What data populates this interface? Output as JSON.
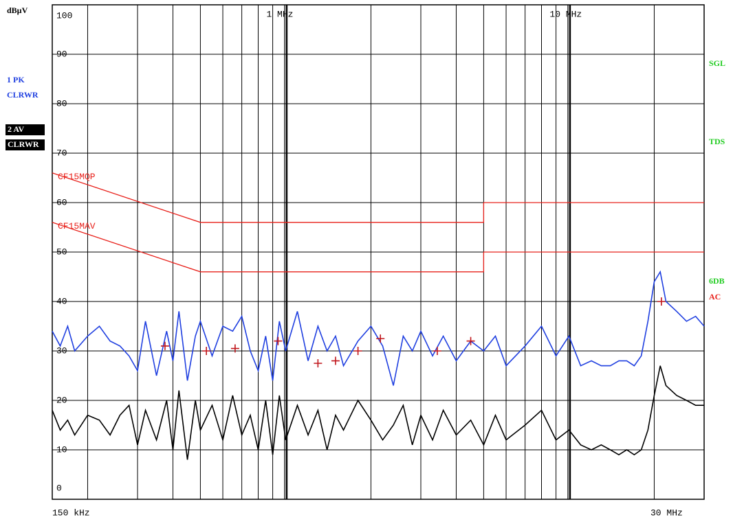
{
  "chart_data": {
    "type": "line",
    "y_label": "dBµV",
    "xscale": "log",
    "xlim": [
      0.15,
      30
    ],
    "ylim": [
      0,
      100
    ],
    "xticks": [
      {
        "value": 0.15,
        "label": "150 kHz"
      },
      {
        "value": 1,
        "label": "1 MHz"
      },
      {
        "value": 10,
        "label": "10 MHz"
      },
      {
        "value": 30,
        "label": "30 MHz"
      }
    ],
    "xgrid": [
      0.2,
      0.3,
      0.4,
      0.5,
      0.6,
      0.7,
      0.8,
      0.9,
      2,
      3,
      4,
      5,
      6,
      7,
      8,
      9,
      20
    ],
    "yticks": [
      0,
      10,
      20,
      30,
      40,
      50,
      60,
      70,
      80,
      90,
      100
    ],
    "grid": true,
    "x": [
      0.15,
      0.16,
      0.17,
      0.18,
      0.2,
      0.22,
      0.24,
      0.26,
      0.28,
      0.3,
      0.32,
      0.35,
      0.38,
      0.4,
      0.42,
      0.45,
      0.48,
      0.5,
      0.55,
      0.6,
      0.65,
      0.7,
      0.75,
      0.8,
      0.85,
      0.9,
      0.95,
      1.0,
      1.1,
      1.2,
      1.3,
      1.4,
      1.5,
      1.6,
      1.8,
      2.0,
      2.2,
      2.4,
      2.6,
      2.8,
      3.0,
      3.3,
      3.6,
      4.0,
      4.5,
      5,
      5.5,
      6,
      7,
      8,
      9,
      10,
      11,
      12,
      13,
      14,
      15,
      16,
      17,
      18,
      19,
      20,
      21,
      22,
      24,
      26,
      28,
      30
    ],
    "series": [
      {
        "name": "1 PK",
        "mode": "CLRWR",
        "color": "#1f3fe0",
        "values": [
          34,
          31,
          35,
          30,
          33,
          35,
          32,
          31,
          29,
          26,
          36,
          25,
          34,
          28,
          38,
          24,
          33,
          36,
          29,
          35,
          34,
          37,
          30,
          26,
          33,
          24,
          36,
          30,
          38,
          28,
          35,
          30,
          33,
          27,
          32,
          35,
          31,
          23,
          33,
          30,
          34,
          29,
          33,
          28,
          32,
          30,
          33,
          27,
          31,
          35,
          29,
          33,
          27,
          28,
          27,
          27,
          28,
          28,
          27,
          29,
          36,
          44,
          46,
          40,
          38,
          36,
          37,
          35
        ]
      },
      {
        "name": "2 AV",
        "mode": "CLRWR",
        "color": "#000000",
        "values": [
          18,
          14,
          16,
          13,
          17,
          16,
          13,
          17,
          19,
          11,
          18,
          12,
          20,
          10,
          22,
          8,
          20,
          14,
          19,
          12,
          21,
          13,
          17,
          10,
          20,
          9,
          21,
          12,
          19,
          13,
          18,
          10,
          17,
          14,
          20,
          16,
          12,
          15,
          19,
          11,
          17,
          12,
          18,
          13,
          16,
          11,
          17,
          12,
          15,
          18,
          12,
          14,
          11,
          10,
          11,
          10,
          9,
          10,
          9,
          10,
          14,
          21,
          27,
          23,
          21,
          20,
          19,
          19
        ]
      }
    ],
    "limits": [
      {
        "name": "CF15MQP",
        "color": "#e8201a",
        "x": [
          0.15,
          0.5,
          5,
          5,
          30
        ],
        "values": [
          66,
          56,
          56,
          60,
          60
        ]
      },
      {
        "name": "CF15MAV",
        "color": "#e8201a",
        "x": [
          0.15,
          0.5,
          5,
          5,
          30
        ],
        "values": [
          56,
          46,
          46,
          50,
          50
        ]
      }
    ],
    "markers": {
      "color": "#c0151a",
      "x": [
        0.375,
        0.525,
        0.663,
        0.94,
        1.3,
        1.5,
        1.8,
        2.16,
        3.43,
        4.5,
        21.2
      ],
      "values": [
        31,
        30,
        30.5,
        32,
        27.5,
        28,
        30,
        32.5,
        30,
        32,
        40
      ]
    },
    "status": [
      "SGL",
      "TDS",
      "6DB"
    ],
    "coupling": "AC"
  }
}
